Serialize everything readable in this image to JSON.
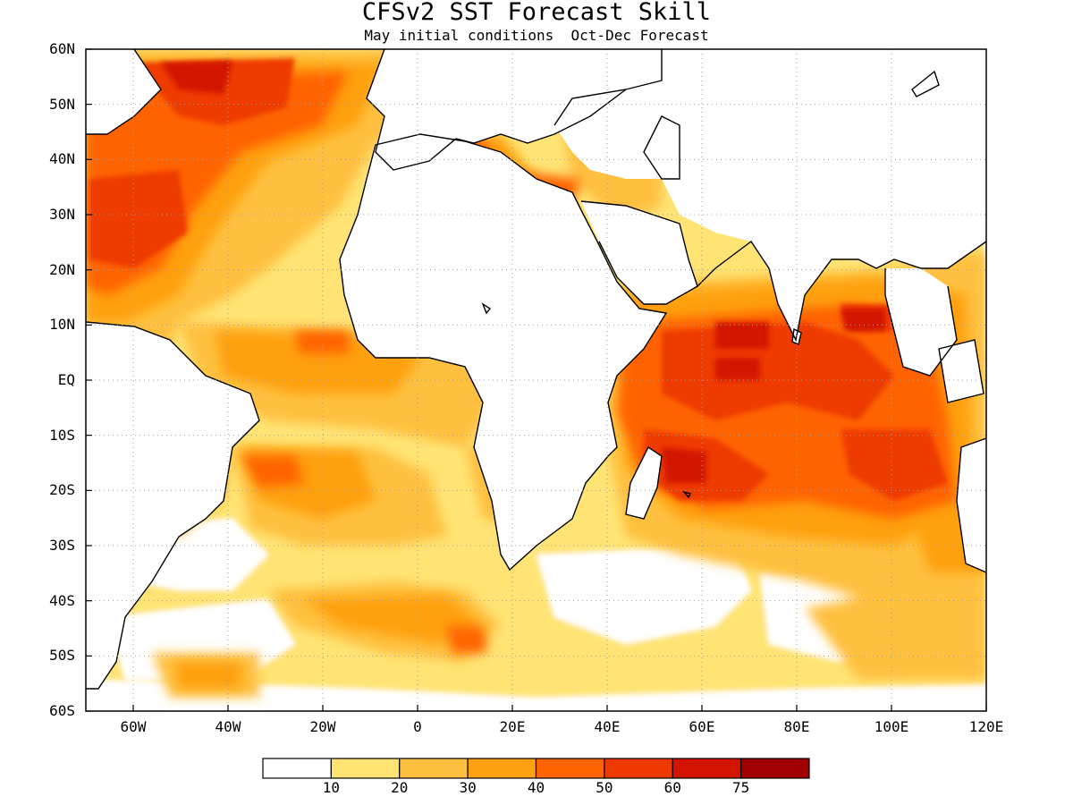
{
  "title": "CFSv2 SST Forecast Skill",
  "subtitle": "May initial conditions  Oct-Dec Forecast",
  "lat_ticks": [
    "60N",
    "50N",
    "40N",
    "30N",
    "20N",
    "10N",
    "EQ",
    "10S",
    "20S",
    "30S",
    "40S",
    "50S",
    "60S"
  ],
  "lon_ticks": [
    "60W",
    "40W",
    "20W",
    "0",
    "20E",
    "40E",
    "60E",
    "80E",
    "100E",
    "120E"
  ],
  "colorbar": {
    "labels": [
      "10",
      "20",
      "30",
      "40",
      "50",
      "60",
      "75"
    ],
    "colors": [
      "#ffffff",
      "#ffe474",
      "#ffc040",
      "#ffa010",
      "#ff6400",
      "#ee3a00",
      "#d21400",
      "#a00000"
    ]
  },
  "map_colors": {
    "land": "#ffffff",
    "coast": "#000000",
    "grid": "#a0a0a0"
  }
}
